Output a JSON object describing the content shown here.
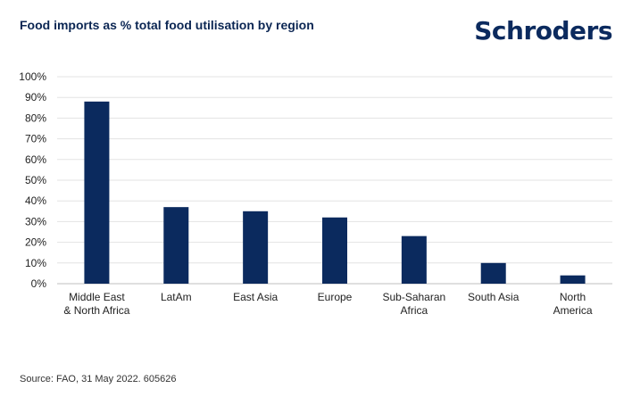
{
  "header": {
    "title": "Food imports as % total food utilisation by region",
    "brand": "Schroders"
  },
  "footer": {
    "source": "Source: FAO, 31 May 2022.  605626"
  },
  "colors": {
    "bar": "#0b2a5e",
    "grid": "#e3e3e3",
    "axis": "#bfbfbf"
  },
  "chart_data": {
    "type": "bar",
    "title": "Food imports as % total food utilisation by region",
    "xlabel": "",
    "ylabel": "",
    "ylim": [
      0,
      100
    ],
    "yticks": [
      0,
      10,
      20,
      30,
      40,
      50,
      60,
      70,
      80,
      90,
      100
    ],
    "ytick_labels": [
      "0%",
      "10%",
      "20%",
      "30%",
      "40%",
      "50%",
      "60%",
      "70%",
      "80%",
      "90%",
      "100%"
    ],
    "grid": true,
    "categories": [
      [
        "Middle East",
        "& North Africa"
      ],
      [
        "LatAm"
      ],
      [
        "East Asia"
      ],
      [
        "Europe"
      ],
      [
        "Sub-Saharan",
        "Africa"
      ],
      [
        "South Asia"
      ],
      [
        "North",
        "America"
      ]
    ],
    "values": [
      88,
      37,
      35,
      32,
      23,
      10,
      4
    ]
  }
}
